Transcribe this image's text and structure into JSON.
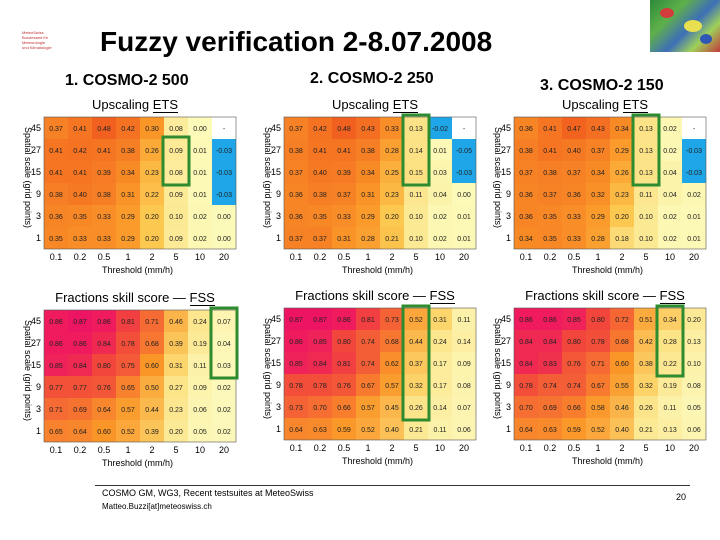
{
  "slide": {
    "title": "Fuzzy verification 2-8.07.2008",
    "logo_text": [
      "MeteoSwiss",
      "Bundesamt für Meteorologie",
      "und Klimatologie"
    ],
    "footer": "COSMO GM, WG3, Recent testsuites at MeteoSwiss",
    "email": "Matteo.Buzzi[at]meteoswiss.ch",
    "page_number": "20"
  },
  "models": [
    "1. COSMO-2 500",
    "2. COSMO-2 250",
    "3. COSMO-2 150"
  ],
  "labels": {
    "ets_title_main": "Upscaling",
    "ets_title_sub": "ETS",
    "fss_title_main": "Fractions skill score",
    "fss_title_sub": "FSS",
    "ylabel": "Spatial scale (grid points)",
    "xlabel": "Threshold (mm/h)"
  },
  "chart_data": [
    {
      "id": "ets-500",
      "type": "heatmap",
      "title": "Upscaling ETS",
      "xlabel": "Threshold (mm/h)",
      "ylabel": "Spatial scale (grid points)",
      "x_ticks": [
        "0.1",
        "0.2",
        "0.5",
        "1",
        "2",
        "5",
        "10",
        "20"
      ],
      "y_ticks": [
        "45",
        "27",
        "15",
        "9",
        "3",
        "1"
      ],
      "cells": [
        [
          "0.37",
          "0.41",
          "0.48",
          "0.42",
          "0.30",
          "0.08",
          "0.00",
          "-"
        ],
        [
          "0.41",
          "0.42",
          "0.41",
          "0.38",
          "0.26",
          "0.09",
          "0.01",
          "-0.03"
        ],
        [
          "0.41",
          "0.41",
          "0.39",
          "0.34",
          "0.23",
          "0.08",
          "0.01",
          "-0.03"
        ],
        [
          "0.38",
          "0.40",
          "0.38",
          "0.31",
          "0.22",
          "0.09",
          "0.01",
          "-0.03"
        ],
        [
          "0.36",
          "0.35",
          "0.33",
          "0.29",
          "0.20",
          "0.10",
          "0.02",
          "0.00"
        ],
        [
          "0.35",
          "0.33",
          "0.33",
          "0.29",
          "0.20",
          "0.09",
          "0.02",
          "0.00"
        ]
      ]
    },
    {
      "id": "ets-250",
      "type": "heatmap",
      "title": "Upscaling ETS",
      "xlabel": "Threshold (mm/h)",
      "ylabel": "Spatial scale (grid points)",
      "x_ticks": [
        "0.1",
        "0.2",
        "0.5",
        "1",
        "2",
        "5",
        "10",
        "20"
      ],
      "y_ticks": [
        "45",
        "27",
        "15",
        "9",
        "3",
        "1"
      ],
      "cells": [
        [
          "0.37",
          "0.42",
          "0.48",
          "0.43",
          "0.33",
          "0.13",
          "-0.02",
          "-"
        ],
        [
          "0.38",
          "0.41",
          "0.41",
          "0.38",
          "0.28",
          "0.14",
          "0.01",
          "-0.05"
        ],
        [
          "0.37",
          "0.40",
          "0.39",
          "0.34",
          "0.25",
          "0.15",
          "0.03",
          "-0.03"
        ],
        [
          "0.36",
          "0.38",
          "0.37",
          "0.31",
          "0.23",
          "0.11",
          "0.04",
          "0.00"
        ],
        [
          "0.36",
          "0.35",
          "0.33",
          "0.29",
          "0.20",
          "0.10",
          "0.02",
          "0.01"
        ],
        [
          "0.37",
          "0.37",
          "0.31",
          "0.28",
          "0.21",
          "0.10",
          "0.02",
          "0.01"
        ]
      ]
    },
    {
      "id": "ets-150",
      "type": "heatmap",
      "title": "Upscaling ETS",
      "xlabel": "Threshold (mm/h)",
      "ylabel": "Spatial scale (grid points)",
      "x_ticks": [
        "0.1",
        "0.2",
        "0.5",
        "1",
        "2",
        "5",
        "10",
        "20"
      ],
      "y_ticks": [
        "45",
        "27",
        "15",
        "9",
        "3",
        "1"
      ],
      "cells": [
        [
          "0.36",
          "0.41",
          "0.47",
          "0.43",
          "0.34",
          "0.13",
          "0.02",
          "-"
        ],
        [
          "0.38",
          "0.41",
          "0.40",
          "0.37",
          "0.29",
          "0.13",
          "0.02",
          "-0.03"
        ],
        [
          "0.37",
          "0.38",
          "0.37",
          "0.34",
          "0.26",
          "0.13",
          "0.04",
          "-0.03"
        ],
        [
          "0.36",
          "0.37",
          "0.36",
          "0.32",
          "0.23",
          "0.11",
          "0.04",
          "0.02"
        ],
        [
          "0.36",
          "0.35",
          "0.33",
          "0.29",
          "0.20",
          "0.10",
          "0.02",
          "0.01"
        ],
        [
          "0.34",
          "0.35",
          "0.33",
          "0.28",
          "0.18",
          "0.10",
          "0.02",
          "0.01"
        ]
      ]
    },
    {
      "id": "fss-500",
      "type": "heatmap",
      "title": "Fractions skill score FSS",
      "xlabel": "Threshold (mm/h)",
      "ylabel": "Spatial scale (grid points)",
      "x_ticks": [
        "0.1",
        "0.2",
        "0.5",
        "1",
        "2",
        "5",
        "10",
        "20"
      ],
      "y_ticks": [
        "45",
        "27",
        "15",
        "9",
        "3",
        "1"
      ],
      "cells": [
        [
          "0.86",
          "0.87",
          "0.86",
          "0.81",
          "0.71",
          "0.46",
          "0.24",
          "0.07"
        ],
        [
          "0.86",
          "0.86",
          "0.84",
          "0.78",
          "0.68",
          "0.39",
          "0.19",
          "0.04"
        ],
        [
          "0.85",
          "0.84",
          "0.80",
          "0.75",
          "0.60",
          "0.31",
          "0.11",
          "0.03"
        ],
        [
          "0.77",
          "0.77",
          "0.76",
          "0.65",
          "0.50",
          "0.27",
          "0.09",
          "0.02"
        ],
        [
          "0.71",
          "0.69",
          "0.64",
          "0.57",
          "0.44",
          "0.23",
          "0.06",
          "0.02"
        ],
        [
          "0.65",
          "0.64",
          "0.60",
          "0.52",
          "0.39",
          "0.20",
          "0.05",
          "0.02"
        ]
      ]
    },
    {
      "id": "fss-250",
      "type": "heatmap",
      "title": "Fractions skill score FSS",
      "xlabel": "Threshold (mm/h)",
      "ylabel": "Spatial scale (grid points)",
      "x_ticks": [
        "0.1",
        "0.2",
        "0.5",
        "1",
        "2",
        "5",
        "10",
        "20"
      ],
      "y_ticks": [
        "45",
        "27",
        "15",
        "9",
        "3",
        "1"
      ],
      "cells": [
        [
          "0.87",
          "0.87",
          "0.86",
          "0.81",
          "0.73",
          "0.52",
          "0.31",
          "0.11"
        ],
        [
          "0.86",
          "0.85",
          "0.80",
          "0.74",
          "0.68",
          "0.44",
          "0.24",
          "0.14"
        ],
        [
          "0.85",
          "0.84",
          "0.81",
          "0.74",
          "0.62",
          "0.37",
          "0.17",
          "0.09"
        ],
        [
          "0.78",
          "0.78",
          "0.76",
          "0.67",
          "0.57",
          "0.32",
          "0.17",
          "0.08"
        ],
        [
          "0.73",
          "0.70",
          "0.66",
          "0.57",
          "0.45",
          "0.26",
          "0.14",
          "0.07"
        ],
        [
          "0.64",
          "0.63",
          "0.59",
          "0.52",
          "0.40",
          "0.21",
          "0.11",
          "0.06"
        ]
      ]
    },
    {
      "id": "fss-150",
      "type": "heatmap",
      "title": "Fractions skill score FSS",
      "xlabel": "Threshold (mm/h)",
      "ylabel": "Spatial scale (grid points)",
      "x_ticks": [
        "0.1",
        "0.2",
        "0.5",
        "1",
        "2",
        "5",
        "10",
        "20"
      ],
      "y_ticks": [
        "45",
        "27",
        "15",
        "9",
        "3",
        "1"
      ],
      "cells": [
        [
          "0.86",
          "0.86",
          "0.85",
          "0.80",
          "0.72",
          "0.51",
          "0.34",
          "0.20"
        ],
        [
          "0.84",
          "0.84",
          "0.80",
          "0.78",
          "0.68",
          "0.42",
          "0.28",
          "0.13"
        ],
        [
          "0.84",
          "0.83",
          "0.76",
          "0.71",
          "0.60",
          "0.38",
          "0.22",
          "0.10"
        ],
        [
          "0.78",
          "0.74",
          "0.74",
          "0.67",
          "0.55",
          "0.32",
          "0.19",
          "0.08"
        ],
        [
          "0.70",
          "0.69",
          "0.66",
          "0.58",
          "0.46",
          "0.26",
          "0.11",
          "0.05"
        ],
        [
          "0.64",
          "0.63",
          "0.59",
          "0.52",
          "0.40",
          "0.21",
          "0.13",
          "0.06"
        ]
      ]
    }
  ],
  "colors": {
    "highlight": "#2e8b2e",
    "negative": "#1ea6e8",
    "missing": "#ffffff"
  }
}
